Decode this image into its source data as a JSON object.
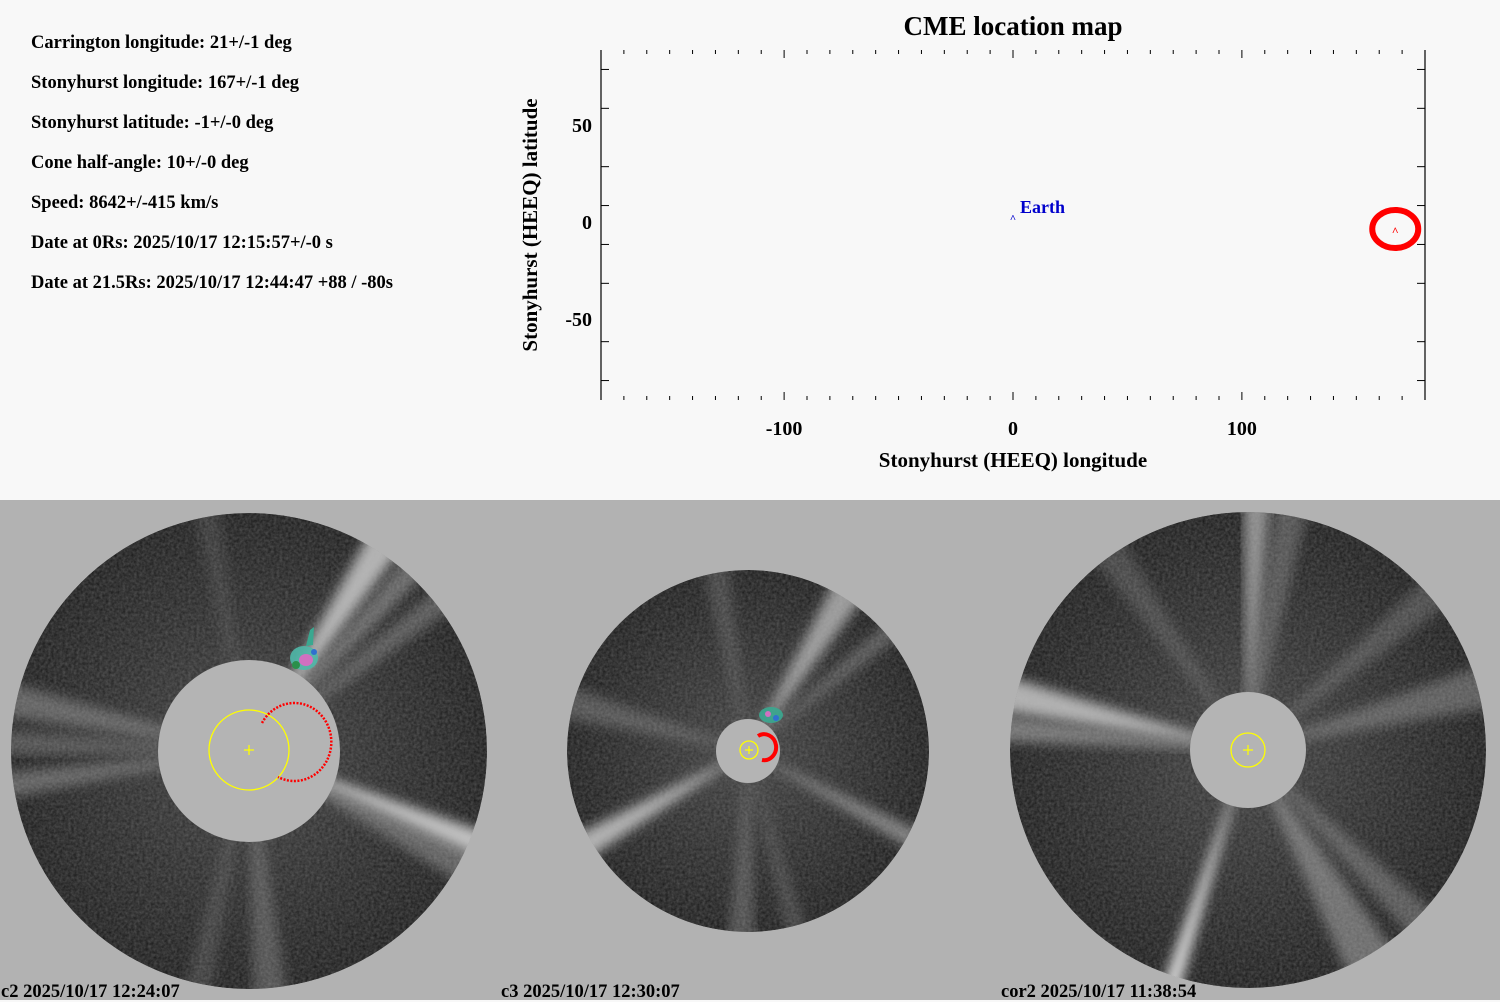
{
  "parameters": [
    {
      "label": "Carrington longitude: 21+/-1 deg"
    },
    {
      "label": "Stonyhurst longitude: 167+/-1 deg"
    },
    {
      "label": "Stonyhurst latitude: -1+/-0 deg"
    },
    {
      "label": "Cone half-angle: 10+/-0 deg"
    },
    {
      "label": "Speed: 8642+/-415 km/s"
    },
    {
      "label": "Date at 0Rs: 2025/10/17 12:15:57+/-0 s"
    },
    {
      "label": "Date at 21.5Rs: 2025/10/17 12:44:47 +88 / -80s"
    }
  ],
  "chart_data": {
    "type": "scatter",
    "title": "CME location map",
    "xlabel": "Stonyhurst (HEEQ) longitude",
    "ylabel": "Stonyhurst (HEEQ) latitude",
    "xlim": [
      -180,
      180
    ],
    "ylim": [
      -90,
      90
    ],
    "x_ticks": [
      {
        "value": -100,
        "label": "-100"
      },
      {
        "value": 0,
        "label": "0"
      },
      {
        "value": 100,
        "label": "100"
      }
    ],
    "x_minor_step": 10,
    "y_ticks": [
      {
        "value": 50,
        "label": "50"
      },
      {
        "value": 0,
        "label": "0"
      },
      {
        "value": -50,
        "label": "-50"
      }
    ],
    "y_minor_values": [
      80,
      60,
      30,
      10,
      -10,
      -30,
      -60,
      -80
    ],
    "grid": false,
    "points": [
      {
        "name": "Earth",
        "label": "Earth",
        "lon": 0,
        "lat": 0,
        "marker": "^",
        "color": "#0000cc"
      },
      {
        "name": "CME",
        "label": "",
        "lon": 167,
        "lat": -1,
        "marker": "^",
        "color": "#ff0000",
        "circled": true
      }
    ],
    "colors": {
      "axis": "#000000",
      "earth": "#0000cc",
      "cme": "#ff0000"
    }
  },
  "panels": [
    {
      "name": "c2",
      "label": "c2 2025/10/17 12:24:07"
    },
    {
      "name": "c3",
      "label": "c3 2025/10/17 12:30:07"
    },
    {
      "name": "cor2",
      "label": "cor2 2025/10/17 11:38:54"
    }
  ],
  "colors": {
    "background_top": "#f8f8f8",
    "background_bottom": "#b2b2b2",
    "occulter": "#b4b4b4",
    "sun_circle": "#ffff00",
    "cme_fit": "#ff0000"
  }
}
